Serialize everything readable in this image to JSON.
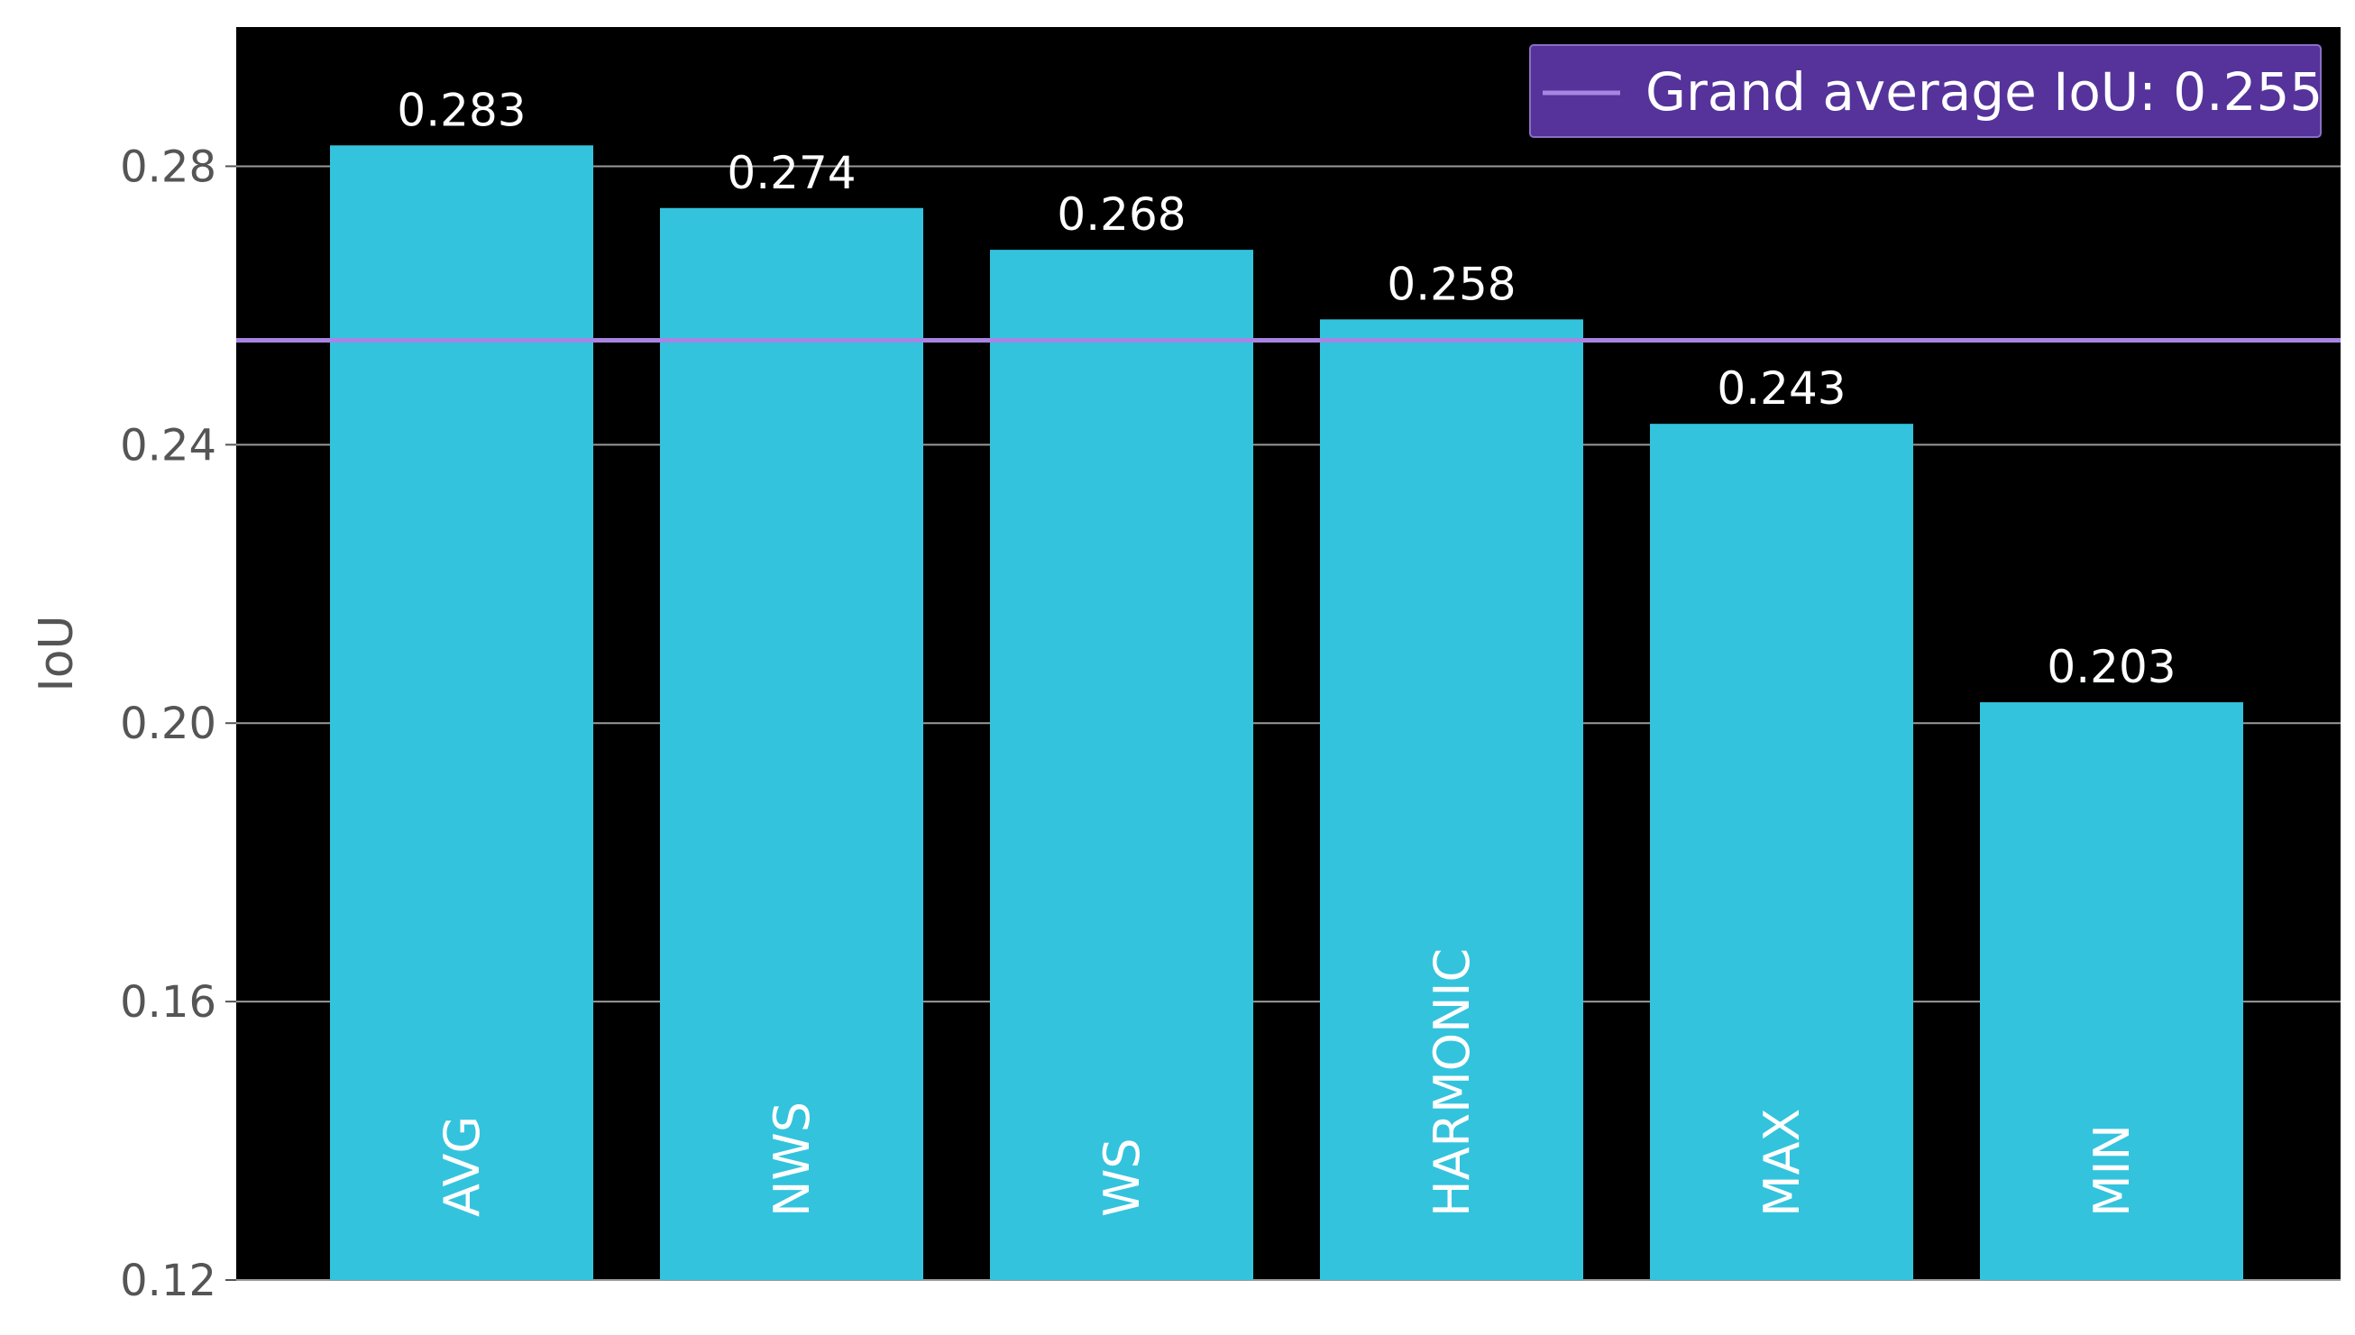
{
  "chart_data": {
    "type": "bar",
    "categories": [
      "AVG",
      "NWS",
      "WS",
      "HARMONIC",
      "MAX",
      "MIN"
    ],
    "values": [
      0.283,
      0.274,
      0.268,
      0.258,
      0.243,
      0.203
    ],
    "value_labels": [
      "0.283",
      "0.274",
      "0.268",
      "0.258",
      "0.243",
      "0.203"
    ],
    "xlabel": "",
    "ylabel": "IoU",
    "ylim": [
      0.12,
      0.3
    ],
    "yticks": [
      0.12,
      0.16,
      0.2,
      0.24,
      0.28
    ],
    "ytick_labels": [
      "0.12",
      "0.16",
      "0.20",
      "0.24",
      "0.28"
    ],
    "reference_line": {
      "value": 0.255,
      "label": "Grand average IoU: 0.255"
    },
    "grid": true,
    "legend_position": "top-right",
    "colors": {
      "bar": "#33c3dd",
      "reference_line": "#a884e3",
      "legend_bg": "#55339a",
      "plot_bg": "#000000",
      "grid": "#9a9a9a"
    }
  }
}
